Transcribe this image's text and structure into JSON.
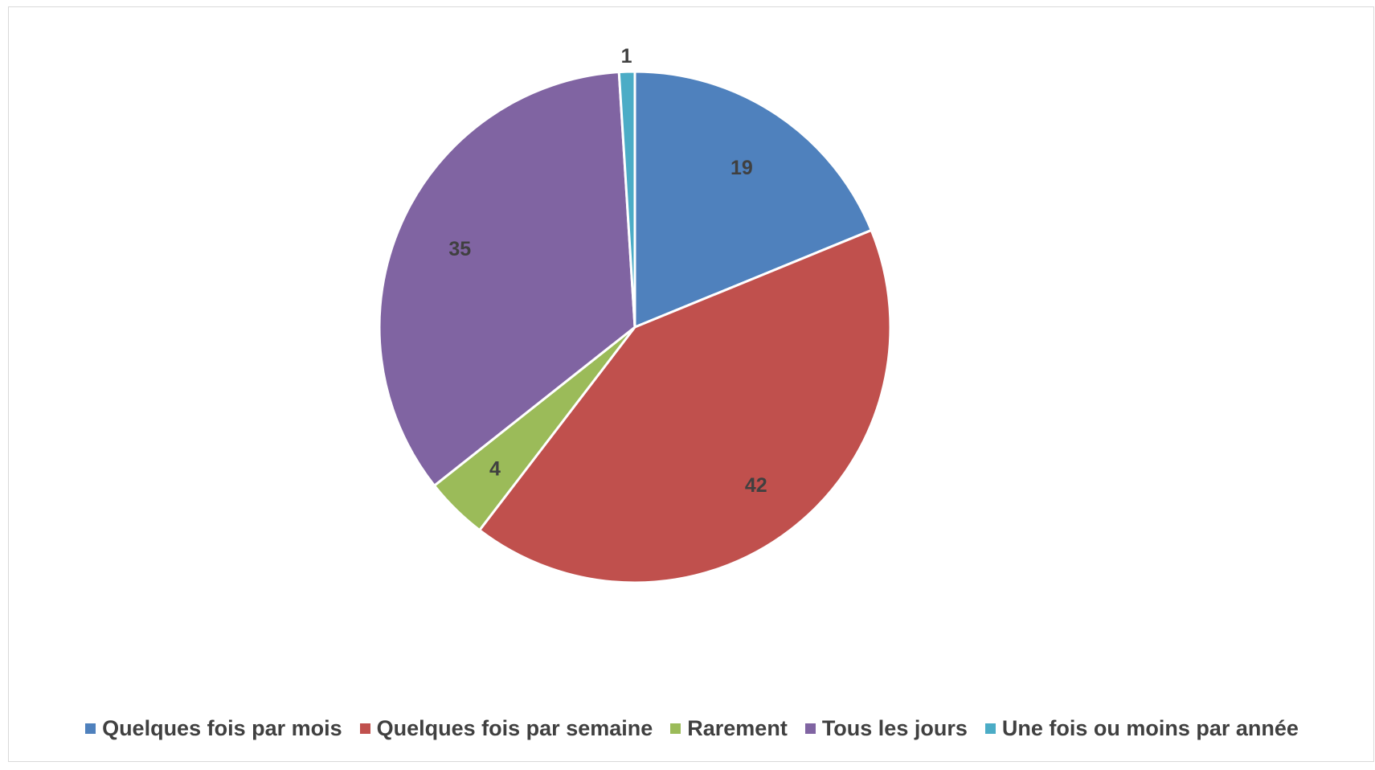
{
  "chart_data": {
    "type": "pie",
    "title": "",
    "categories": [
      "Quelques fois par mois",
      "Quelques fois par semaine",
      "Rarement",
      "Tous les jours",
      "Une fois ou moins par année"
    ],
    "values": [
      19,
      42,
      4,
      35,
      1
    ],
    "data_labels": [
      "19",
      "42",
      "4",
      "35",
      "1"
    ],
    "colors": [
      "#4F81BD",
      "#C0504D",
      "#9BBB59",
      "#8064A2",
      "#4BACC6"
    ],
    "start_angle_deg": 0,
    "direction": "clockwise",
    "legend_position": "bottom"
  }
}
